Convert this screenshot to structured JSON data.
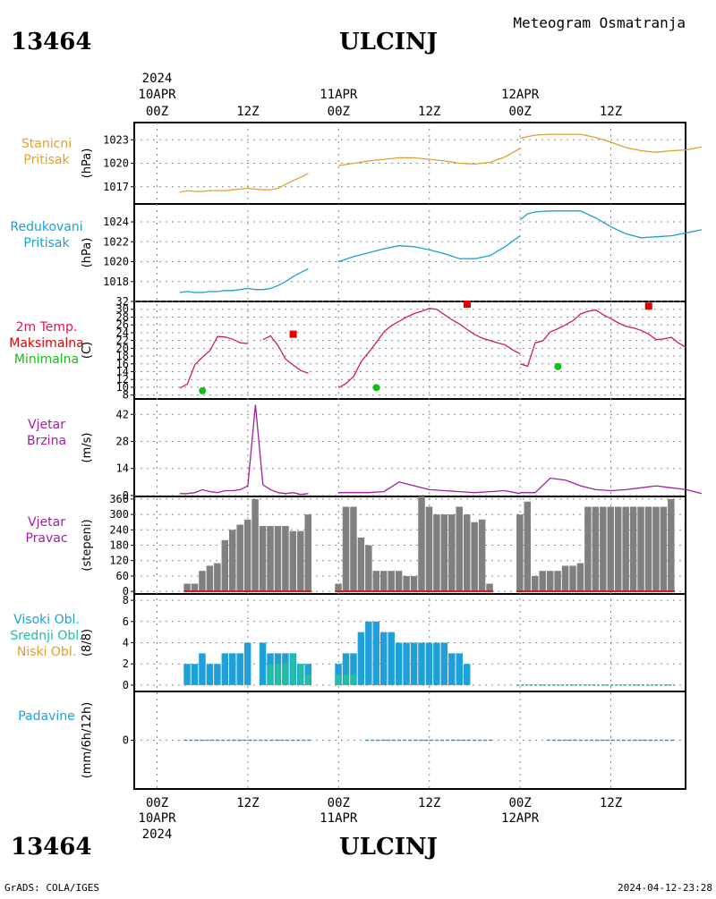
{
  "header": {
    "station_id": "13464",
    "station_name": "ULCINJ",
    "product": "Meteogram Osmatranja"
  },
  "footer": {
    "station_id": "13464",
    "station_name": "ULCINJ",
    "credit": "GrADS: COLA/IGES",
    "timestamp": "2024-04-12-23:28"
  },
  "time_axis": {
    "year": "2024",
    "day_labels": [
      "10APR",
      "11APR",
      "12APR"
    ],
    "hour_labels": [
      "00Z",
      "12Z",
      "00Z",
      "12Z",
      "00Z",
      "12Z"
    ]
  },
  "panels": {
    "station_pressure": {
      "label_lines": [
        "Stanicni",
        "Pritisak"
      ],
      "units": "(hPa)",
      "color": "#e0a030"
    },
    "reduced_pressure": {
      "label_lines": [
        "Redukovani",
        "Pritisak"
      ],
      "units": "(hPa)",
      "color": "#1aa0d0"
    },
    "temperature": {
      "label_lines": [
        "2m Temp.",
        "Maksimalna",
        "Minimalna"
      ],
      "label_colors": [
        "#e0105a",
        "#e00000",
        "#10c010"
      ],
      "units": "(C)"
    },
    "wind_speed": {
      "label_lines": [
        "Vjetar",
        "Brzina"
      ],
      "units": "(m/s)",
      "color": "#a020a0"
    },
    "wind_direction": {
      "label_lines": [
        "Vjetar",
        "Pravac"
      ],
      "units": "(stepeni)",
      "color": "#a020a0"
    },
    "clouds": {
      "label_lines": [
        "Visoki Obl.",
        "Srednji Obl.",
        "Niski Obl."
      ],
      "label_colors": [
        "#20a0d8",
        "#20c0a0",
        "#e0a030"
      ],
      "units": "(8/8)"
    },
    "precipitation": {
      "label_lines": [
        "Padavine"
      ],
      "units": "(mm/6h/12h)",
      "color": "#20a0d8"
    }
  },
  "chart_data": [
    {
      "type": "line",
      "name": "station_pressure",
      "y_ticks": [
        1017,
        1020,
        1023
      ],
      "ylim": [
        1014.8,
        1025.2
      ],
      "x_unit": "hours since 2024-04-10 00Z",
      "segments": [
        {
          "x": [
            3,
            4,
            5,
            6,
            7,
            8,
            9,
            10,
            11,
            12,
            13,
            14,
            15,
            16,
            17,
            18,
            19,
            20
          ],
          "y": [
            1016.3,
            1016.5,
            1016.4,
            1016.4,
            1016.5,
            1016.5,
            1016.5,
            1016.6,
            1016.7,
            1016.8,
            1016.7,
            1016.6,
            1016.6,
            1016.8,
            1017.3,
            1017.8,
            1018.2,
            1018.7
          ]
        },
        {
          "x": [
            24,
            26,
            28,
            30,
            32,
            34,
            36,
            38,
            40,
            42,
            44,
            46,
            48
          ],
          "y": [
            1019.7,
            1020.0,
            1020.3,
            1020.5,
            1020.7,
            1020.7,
            1020.5,
            1020.3,
            1020.0,
            1019.9,
            1020.1,
            1020.8,
            1021.9
          ]
        },
        {
          "x": [
            48,
            50,
            52,
            54,
            56,
            58,
            60,
            62,
            64,
            66,
            68,
            70,
            72
          ],
          "y": [
            1023.2,
            1023.6,
            1023.7,
            1023.7,
            1023.7,
            1023.3,
            1022.7,
            1022.0,
            1021.6,
            1021.4,
            1021.6,
            1021.7,
            1022.1
          ]
        }
      ]
    },
    {
      "type": "line",
      "name": "reduced_pressure",
      "y_ticks": [
        1018,
        1020,
        1022,
        1024
      ],
      "ylim": [
        1016.0,
        1025.8
      ],
      "segments": [
        {
          "x": [
            3,
            4,
            5,
            6,
            7,
            8,
            9,
            10,
            11,
            12,
            13,
            14,
            15,
            16,
            17,
            18,
            19,
            20
          ],
          "y": [
            1016.9,
            1017.0,
            1016.9,
            1016.9,
            1017.0,
            1017.0,
            1017.1,
            1017.1,
            1017.2,
            1017.3,
            1017.2,
            1017.2,
            1017.3,
            1017.6,
            1018.0,
            1018.5,
            1018.9,
            1019.3
          ]
        },
        {
          "x": [
            24,
            26,
            28,
            30,
            32,
            34,
            36,
            38,
            40,
            42,
            44,
            46,
            48
          ],
          "y": [
            1020.0,
            1020.5,
            1020.9,
            1021.3,
            1021.6,
            1021.5,
            1021.2,
            1020.8,
            1020.3,
            1020.3,
            1020.6,
            1021.5,
            1022.6
          ]
        },
        {
          "x": [
            48,
            49,
            50,
            52,
            54,
            56,
            58,
            60,
            62,
            64,
            66,
            68,
            70,
            72
          ],
          "y": [
            1024.2,
            1024.8,
            1025.0,
            1025.1,
            1025.1,
            1025.1,
            1024.4,
            1023.5,
            1022.8,
            1022.4,
            1022.5,
            1022.6,
            1022.9,
            1023.2
          ]
        }
      ]
    },
    {
      "type": "line",
      "name": "temperature",
      "y_ticks": [
        8,
        10,
        12,
        14,
        16,
        18,
        20,
        22,
        24,
        26,
        28,
        30,
        32
      ],
      "ylim": [
        7,
        32
      ],
      "segments": [
        {
          "x": [
            3,
            4,
            5,
            6,
            7,
            8,
            9,
            10,
            11,
            12
          ],
          "y": [
            9.8,
            10.8,
            15.8,
            17.7,
            19.4,
            23.0,
            22.9,
            22.3,
            21.4,
            21.2
          ]
        },
        {
          "x": [
            14,
            15,
            16,
            17,
            18,
            19,
            20
          ],
          "y": [
            22.2,
            23.2,
            20.7,
            17.2,
            15.7,
            14.3,
            13.6
          ]
        },
        {
          "x": [
            24,
            25,
            26,
            27,
            28,
            29,
            30,
            31,
            32,
            33,
            34,
            35,
            36,
            37,
            38,
            39,
            40,
            41,
            42,
            43,
            44,
            45,
            46,
            47,
            48
          ],
          "y": [
            9.9,
            11.0,
            12.8,
            16.6,
            19.0,
            21.5,
            24.2,
            25.8,
            26.9,
            28.0,
            28.9,
            29.5,
            30.2,
            30.0,
            28.6,
            27.3,
            26.2,
            24.8,
            23.5,
            22.6,
            22.0,
            21.4,
            20.9,
            19.6,
            18.6
          ]
        },
        {
          "x": [
            48,
            49,
            50,
            51,
            52,
            53,
            54,
            55,
            56,
            57,
            58,
            59,
            60,
            61,
            62,
            63,
            64,
            65,
            66,
            67,
            68,
            69,
            70
          ],
          "y": [
            16.0,
            15.4,
            21.4,
            21.9,
            24.2,
            25.0,
            26.0,
            27.1,
            28.8,
            29.5,
            29.8,
            28.6,
            27.6,
            26.5,
            25.6,
            25.2,
            24.6,
            23.6,
            22.2,
            22.4,
            22.8,
            21.3,
            20.2
          ]
        }
      ],
      "max_points": [
        {
          "x": 18,
          "y": 23.6
        },
        {
          "x": 41,
          "y": 31.3
        },
        {
          "x": 65,
          "y": 30.8
        }
      ],
      "min_points": [
        {
          "x": 6,
          "y": 9.1
        },
        {
          "x": 29,
          "y": 9.9
        },
        {
          "x": 53,
          "y": 15.3
        }
      ]
    },
    {
      "type": "line",
      "name": "wind_speed",
      "y_ticks": [
        0,
        14,
        28,
        42
      ],
      "ylim": [
        -0.5,
        50
      ],
      "segments": [
        {
          "x": [
            3,
            4,
            5,
            6,
            7,
            8,
            9,
            10,
            11,
            12,
            13,
            14,
            15,
            16,
            17,
            18,
            19,
            20
          ],
          "y": [
            1.0,
            1.0,
            1.5,
            3.0,
            2.0,
            1.5,
            2.5,
            2.5,
            3.0,
            5.0,
            47.0,
            5.5,
            3.0,
            1.5,
            1.0,
            1.5,
            0.5,
            1.0
          ]
        },
        {
          "x": [
            24,
            26,
            28,
            30,
            32,
            34,
            36,
            38,
            40,
            42,
            44,
            46,
            48
          ],
          "y": [
            1.5,
            1.5,
            1.5,
            2.0,
            7.0,
            5.0,
            3.0,
            2.5,
            2.0,
            1.5,
            2.0,
            2.5,
            1.0
          ]
        },
        {
          "x": [
            48,
            50,
            52,
            54,
            56,
            58,
            60,
            62,
            64,
            66,
            68,
            70,
            72
          ],
          "y": [
            1.5,
            1.5,
            9.0,
            8.0,
            5.0,
            3.0,
            2.5,
            3.0,
            4.0,
            5.0,
            4.0,
            3.0,
            1.0
          ]
        }
      ]
    },
    {
      "type": "bar",
      "name": "wind_direction",
      "y_ticks": [
        0,
        60,
        120,
        180,
        240,
        300,
        360
      ],
      "ylim": [
        -10,
        370
      ],
      "x": [
        4,
        5,
        6,
        7,
        8,
        9,
        10,
        11,
        12,
        13,
        14,
        15,
        16,
        17,
        18,
        19,
        20,
        24,
        25,
        26,
        27,
        28,
        29,
        30,
        31,
        32,
        33,
        34,
        35,
        36,
        37,
        38,
        39,
        40,
        41,
        42,
        43,
        44,
        48,
        49,
        50,
        51,
        52,
        53,
        54,
        55,
        56,
        57,
        58,
        59,
        60,
        61,
        62,
        63,
        64,
        65,
        66,
        67,
        68
      ],
      "values": [
        30,
        30,
        80,
        100,
        110,
        200,
        240,
        260,
        280,
        360,
        255,
        255,
        255,
        255,
        235,
        235,
        300,
        30,
        330,
        330,
        210,
        180,
        80,
        80,
        80,
        80,
        60,
        60,
        370,
        330,
        300,
        300,
        300,
        330,
        300,
        270,
        280,
        30,
        300,
        350,
        60,
        80,
        80,
        80,
        100,
        100,
        110,
        330,
        330,
        330,
        330,
        330,
        330,
        330,
        330,
        330,
        330,
        330,
        360
      ],
      "color": "#808080"
    },
    {
      "type": "bar",
      "name": "clouds",
      "y_ticks": [
        0,
        2,
        4,
        6,
        8
      ],
      "ylim": [
        -0.6,
        8.6
      ],
      "x": [
        4,
        5,
        6,
        7,
        8,
        9,
        10,
        11,
        12,
        13,
        14,
        15,
        16,
        17,
        18,
        19,
        20,
        24,
        25,
        26,
        27,
        28,
        29,
        30,
        31,
        32,
        33,
        34,
        35,
        36,
        37,
        38,
        39,
        40,
        41,
        42,
        43,
        44
      ],
      "high": [
        2,
        2,
        3,
        2,
        2,
        3,
        3,
        3,
        4,
        0,
        4,
        3,
        3,
        3,
        3,
        2,
        2,
        2,
        3,
        3,
        5,
        6,
        6,
        5,
        5,
        4,
        4,
        4,
        4,
        4,
        4,
        4,
        3,
        3,
        2,
        0,
        0,
        0
      ],
      "middle": [
        0,
        0,
        0,
        0,
        0,
        0,
        0,
        0,
        0,
        0,
        0,
        2,
        2,
        2,
        3,
        2,
        1,
        1,
        1,
        1,
        0,
        0,
        0,
        0,
        0,
        0,
        0,
        0,
        0,
        0,
        0,
        0,
        0,
        0,
        0,
        0,
        0,
        0
      ],
      "low": [
        0,
        0,
        0,
        0,
        0,
        0,
        0,
        0,
        0,
        0,
        0,
        0,
        0,
        0,
        0,
        0,
        0,
        0,
        0,
        0,
        0,
        0,
        0,
        0,
        0,
        0,
        0,
        0,
        0,
        0,
        0,
        0,
        0,
        0,
        0,
        0,
        0,
        0
      ]
    },
    {
      "type": "bar",
      "name": "precipitation",
      "y_ticks": [
        0
      ],
      "ylim": [
        -5,
        5
      ],
      "values_all": 0
    }
  ]
}
